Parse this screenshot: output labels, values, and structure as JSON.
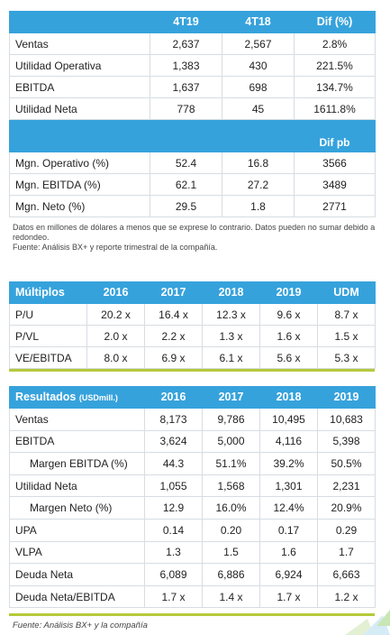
{
  "summary": {
    "headers": [
      "",
      "4T19",
      "4T18",
      "Dif (%)"
    ],
    "rows_a": [
      {
        "label": "Ventas",
        "v1": "2,637",
        "v2": "2,567",
        "v3": "2.8%"
      },
      {
        "label": "Utilidad Operativa",
        "v1": "1,383",
        "v2": "430",
        "v3": "221.5%"
      },
      {
        "label": "EBITDA",
        "v1": "1,637",
        "v2": "698",
        "v3": "134.7%"
      },
      {
        "label": "Utilidad Neta",
        "v1": "778",
        "v2": "45",
        "v3": "1611.8%"
      }
    ],
    "mid_header": "Dif pb",
    "rows_b": [
      {
        "label": "Mgn. Operativo (%)",
        "v1": "52.4",
        "v2": "16.8",
        "v3": "3566"
      },
      {
        "label": "Mgn. EBITDA (%)",
        "v1": "62.1",
        "v2": "27.2",
        "v3": "3489"
      },
      {
        "label": "Mgn. Neto (%)",
        "v1": "29.5",
        "v2": "1.8",
        "v3": "2771"
      }
    ],
    "note_line1": "Datos en millones de dólares a menos que se exprese lo contrario. Datos pueden no sumar debido a redondeo.",
    "note_line2": "Fuente: Análisis BX+ y reporte trimestral de la compañía."
  },
  "multiples": {
    "headers": [
      "Múltiplos",
      "2016",
      "2017",
      "2018",
      "2019",
      "UDM"
    ],
    "rows": [
      {
        "label": "P/U",
        "v": [
          "20.2 x",
          "16.4 x",
          "12.3 x",
          "9.6 x",
          "8.7 x"
        ]
      },
      {
        "label": "P/VL",
        "v": [
          "2.0 x",
          "2.2 x",
          "1.3 x",
          "1.6 x",
          "1.5 x"
        ]
      },
      {
        "label": "VE/EBITDA",
        "v": [
          "8.0 x",
          "6.9 x",
          "6.1 x",
          "5.6 x",
          "5.3 x"
        ]
      }
    ]
  },
  "results": {
    "title": "Resultados",
    "unit": "(USDmill.)",
    "headers": [
      "2016",
      "2017",
      "2018",
      "2019"
    ],
    "rows": [
      {
        "label": "Ventas",
        "v": [
          "8,173",
          "9,786",
          "10,495",
          "10,683"
        ]
      },
      {
        "label": "EBITDA",
        "v": [
          "3,624",
          "5,000",
          "4,116",
          "5,398"
        ]
      },
      {
        "label": "Margen EBITDA (%)",
        "v": [
          "44.3",
          "51.1%",
          "39.2%",
          "50.5%"
        ]
      },
      {
        "label": "Utilidad Neta",
        "v": [
          "1,055",
          "1,568",
          "1,301",
          "2,231"
        ]
      },
      {
        "label": "Margen Neto (%)",
        "v": [
          "12.9",
          "16.0%",
          "12.4%",
          "20.9%"
        ]
      },
      {
        "label": "UPA",
        "v": [
          "0.14",
          "0.20",
          "0.17",
          "0.29"
        ]
      },
      {
        "label": "VLPA",
        "v": [
          "1.3",
          "1.5",
          "1.6",
          "1.7"
        ]
      },
      {
        "label": "Deuda Neta",
        "v": [
          "6,089",
          "6,886",
          "6,924",
          "6,663"
        ]
      },
      {
        "label": "Deuda Neta/EBITDA",
        "v": [
          "1.7 x",
          "1.4 x",
          "1.7 x",
          "1.2 x"
        ]
      }
    ]
  },
  "footer": "Fuente: Análisis BX+ y la compañía",
  "colors": {
    "header": "#36a2dc",
    "rule": "#b5c93a"
  }
}
